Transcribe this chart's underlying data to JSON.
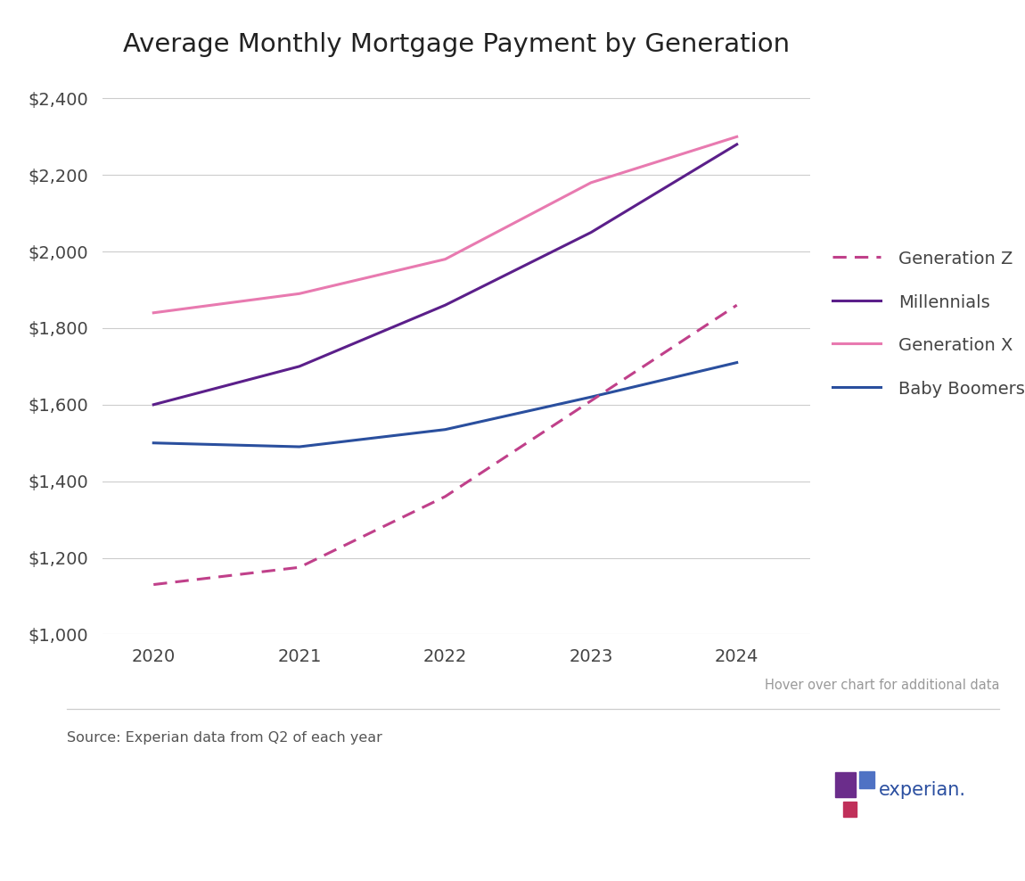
{
  "title": "Average Monthly Mortgage Payment by Generation",
  "years": [
    2020,
    2021,
    2022,
    2023,
    2024
  ],
  "series": {
    "Generation Z": {
      "values": [
        1130,
        1175,
        1360,
        1610,
        1860
      ],
      "color": "#c0408a",
      "linestyle": "dashed",
      "linewidth": 2.2,
      "zorder": 4
    },
    "Millennials": {
      "values": [
        1600,
        1700,
        1860,
        2050,
        2280
      ],
      "color": "#5b1f8a",
      "linestyle": "solid",
      "linewidth": 2.2,
      "zorder": 3
    },
    "Generation X": {
      "values": [
        1840,
        1890,
        1980,
        2180,
        2300
      ],
      "color": "#e87ab0",
      "linestyle": "solid",
      "linewidth": 2.2,
      "zorder": 2
    },
    "Baby Boomers": {
      "values": [
        1500,
        1490,
        1535,
        1620,
        1710
      ],
      "color": "#2a4f9e",
      "linestyle": "solid",
      "linewidth": 2.2,
      "zorder": 1
    }
  },
  "ylim": [
    1000,
    2450
  ],
  "yticks": [
    1000,
    1200,
    1400,
    1600,
    1800,
    2000,
    2200,
    2400
  ],
  "xlim": [
    2019.65,
    2024.5
  ],
  "xticks": [
    2020,
    2021,
    2022,
    2023,
    2024
  ],
  "source_text": "Source: Experian data from Q2 of each year",
  "hover_text": "Hover over chart for additional data",
  "background_color": "#ffffff",
  "grid_color": "#cccccc",
  "title_fontsize": 21,
  "tick_fontsize": 14,
  "legend_fontsize": 14,
  "legend_order": [
    "Generation Z",
    "Millennials",
    "Generation X",
    "Baby Boomers"
  ]
}
